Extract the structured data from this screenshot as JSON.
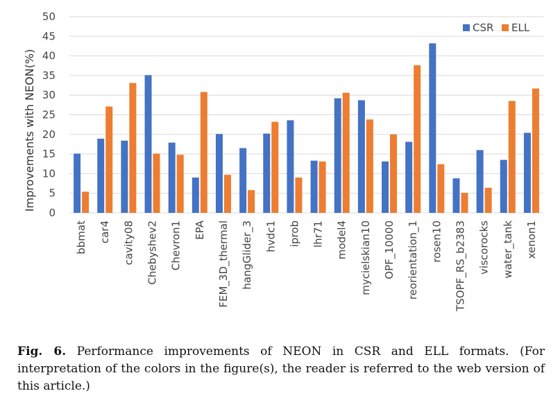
{
  "chart_data": {
    "type": "bar",
    "ylabel": "Improvements with NEON(%)",
    "ylim": [
      0,
      50
    ],
    "yticks": [
      0,
      5,
      10,
      15,
      20,
      25,
      30,
      35,
      40,
      45,
      50
    ],
    "grid": true,
    "legend_position": "top-right",
    "categories": [
      "bbmat",
      "car4",
      "cavity08",
      "Chebyshev2",
      "Chevron1",
      "EPA",
      "FEM_3D_thermal",
      "hangGlider_3",
      "hvdc1",
      "iprob",
      "lhr71",
      "model4",
      "mycielskian10",
      "OPF_10000",
      "reorientation_1",
      "rosen10",
      "TSOPF_RS_b2383",
      "viscorocks",
      "water_tank",
      "xenon1"
    ],
    "series": [
      {
        "name": "CSR",
        "color": "#4472C4",
        "values": [
          15.1,
          18.9,
          18.4,
          35.1,
          17.9,
          9.0,
          20.1,
          16.5,
          20.2,
          23.6,
          13.3,
          29.2,
          28.7,
          13.1,
          18.1,
          43.2,
          8.8,
          16.0,
          13.5,
          20.4
        ]
      },
      {
        "name": "ELL",
        "color": "#ED7D31",
        "values": [
          5.4,
          27.1,
          33.1,
          15.1,
          14.8,
          30.8,
          9.7,
          5.8,
          23.2,
          9.0,
          13.1,
          30.6,
          23.8,
          20.0,
          37.6,
          12.4,
          5.1,
          6.4,
          28.5,
          31.7
        ]
      }
    ]
  },
  "caption": {
    "label": "Fig. 6.",
    "text": "Performance improvements of NEON in CSR and ELL formats. (For interpretation of the colors in the figure(s), the reader is referred to the web version of this article.)"
  }
}
